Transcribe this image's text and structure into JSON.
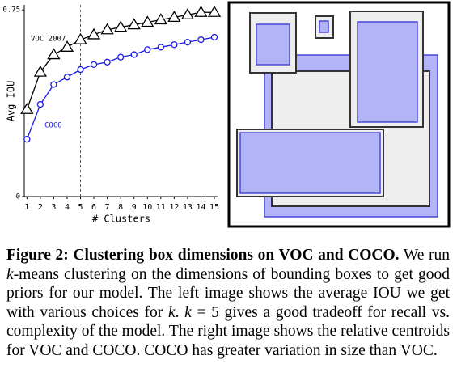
{
  "chart_data": {
    "type": "line",
    "x_label": "# Clusters",
    "y_label": "Avg IOU",
    "x": [
      1,
      2,
      3,
      4,
      5,
      6,
      7,
      8,
      9,
      10,
      11,
      12,
      13,
      14,
      15
    ],
    "series": [
      {
        "name": "VOC 2007",
        "color": "#000000",
        "marker": "triangle",
        "values": [
          0.35,
          0.5,
          0.57,
          0.6,
          0.63,
          0.65,
          0.67,
          0.68,
          0.69,
          0.7,
          0.71,
          0.72,
          0.73,
          0.74,
          0.74
        ]
      },
      {
        "name": "COCO",
        "color": "#1a1ae6",
        "marker": "circle",
        "values": [
          0.23,
          0.37,
          0.45,
          0.48,
          0.51,
          0.53,
          0.54,
          0.56,
          0.57,
          0.59,
          0.6,
          0.61,
          0.62,
          0.63,
          0.64
        ]
      }
    ],
    "xlim": [
      0.8,
      15.3
    ],
    "xticks": [
      1,
      2,
      3,
      4,
      5,
      6,
      7,
      8,
      9,
      10,
      11,
      12,
      13,
      14,
      15
    ],
    "ylim": [
      0,
      0.77
    ],
    "yticks": [
      0,
      0.75
    ],
    "vline_x": 5,
    "grid": false
  },
  "caption": {
    "label": "Figure 2:",
    "title": "Clustering box dimensions on VOC and COCO.",
    "body": [
      "We run ",
      "k",
      "-means clustering on the dimensions of bounding boxes to get good priors for our model. The left image shows the average IOU we get with various choices for ",
      "k",
      ". ",
      "k",
      " = 5 gives a good tradeoff for recall vs. complexity of the model. The right image shows the relative centroids for VOC and COCO. COCO has greater variation in size than VOC."
    ]
  }
}
